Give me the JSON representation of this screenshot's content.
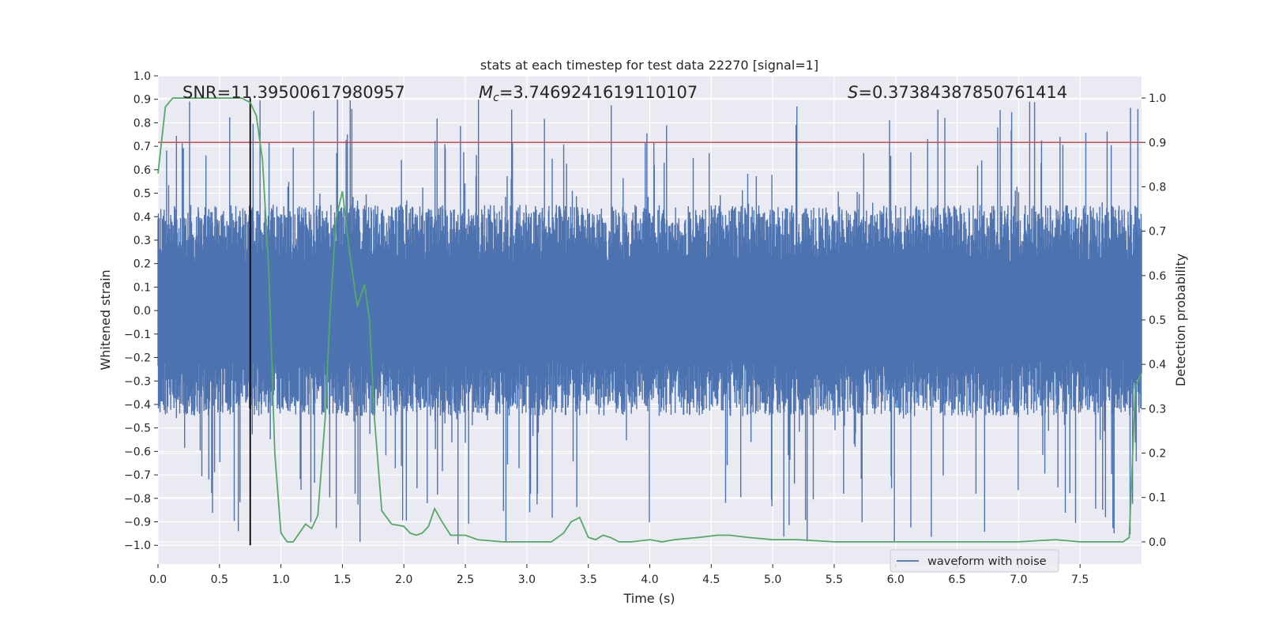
{
  "chart_data": {
    "type": "line",
    "title": "stats at each timestep for test data 22270 [signal=1]",
    "xlabel": "Time (s)",
    "ylabel": "Whitened strain",
    "y2label": "Detection probability",
    "xlim": [
      0.0,
      8.0
    ],
    "ylim": [
      -1.08,
      1.0
    ],
    "y2lim": [
      -0.05,
      1.05
    ],
    "xticks": [
      "0.0",
      "0.5",
      "1.0",
      "1.5",
      "2.0",
      "2.5",
      "3.0",
      "3.5",
      "4.0",
      "4.5",
      "5.0",
      "5.5",
      "6.0",
      "6.5",
      "7.0",
      "7.5"
    ],
    "yticks": [
      "1.0",
      "0.9",
      "0.8",
      "0.7",
      "0.6",
      "0.5",
      "0.4",
      "0.3",
      "0.2",
      "0.1",
      "0.0",
      "−0.1",
      "−0.2",
      "−0.3",
      "−0.4",
      "−0.5",
      "−0.6",
      "−0.7",
      "−0.8",
      "−0.9",
      "−1.0"
    ],
    "y2ticks": [
      "1.0",
      "0.9",
      "0.8",
      "0.7",
      "0.6",
      "0.5",
      "0.4",
      "0.3",
      "0.2",
      "0.1",
      "0.0"
    ],
    "grid": true,
    "legend_position": "bottom-right",
    "annotations": {
      "snr": "SNR=11.39500617980957",
      "mc_symbol": "M",
      "mc_sub": "c",
      "mc_value": "=3.7469241619110107",
      "s_symbol": "S",
      "s_value": "=0.37384387850761414"
    },
    "threshold": {
      "y2": 0.9,
      "color": "#c44e52"
    },
    "marker_time": 0.75,
    "series": [
      {
        "name": "waveform with noise",
        "axis": "left",
        "color": "#4c72b0",
        "style": "noise",
        "envelope_upper": 0.45,
        "envelope_lower": -0.45,
        "peak_max": 0.9,
        "peak_min": -1.0
      },
      {
        "axis": "right",
        "color": "#55a868",
        "x": [
          0.0,
          0.06,
          0.12,
          0.2,
          0.3,
          0.4,
          0.5,
          0.6,
          0.68,
          0.75,
          0.8,
          0.85,
          0.9,
          0.95,
          1.0,
          1.05,
          1.1,
          1.15,
          1.2,
          1.25,
          1.3,
          1.36,
          1.4,
          1.45,
          1.5,
          1.55,
          1.62,
          1.68,
          1.72,
          1.76,
          1.82,
          1.9,
          2.0,
          2.05,
          2.1,
          2.15,
          2.2,
          2.25,
          2.3,
          2.38,
          2.5,
          2.6,
          2.8,
          3.0,
          3.2,
          3.3,
          3.36,
          3.43,
          3.5,
          3.56,
          3.62,
          3.68,
          3.75,
          3.85,
          4.0,
          4.1,
          4.2,
          4.4,
          4.55,
          4.65,
          4.8,
          5.0,
          5.2,
          5.5,
          6.0,
          6.5,
          7.0,
          7.3,
          7.5,
          7.7,
          7.85,
          7.9,
          7.95,
          8.0
        ],
        "values": [
          0.83,
          0.98,
          1.0,
          1.0,
          1.0,
          1.0,
          1.0,
          1.0,
          1.0,
          0.99,
          0.96,
          0.86,
          0.62,
          0.2,
          0.02,
          0.0,
          0.0,
          0.02,
          0.04,
          0.03,
          0.06,
          0.28,
          0.52,
          0.73,
          0.79,
          0.67,
          0.53,
          0.58,
          0.5,
          0.28,
          0.07,
          0.04,
          0.035,
          0.02,
          0.015,
          0.02,
          0.035,
          0.075,
          0.05,
          0.015,
          0.015,
          0.005,
          0.0,
          0.0,
          0.0,
          0.02,
          0.045,
          0.055,
          0.01,
          0.005,
          0.015,
          0.01,
          0.0,
          0.0,
          0.005,
          0.0,
          0.005,
          0.01,
          0.015,
          0.015,
          0.01,
          0.005,
          0.005,
          0.0,
          0.0,
          0.0,
          0.0,
          0.005,
          0.0,
          0.0,
          0.0,
          0.01,
          0.35,
          0.38
        ]
      }
    ]
  }
}
